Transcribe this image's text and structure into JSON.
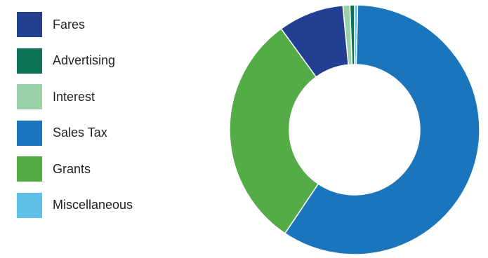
{
  "chart_data": {
    "type": "pie",
    "donut": true,
    "title": "",
    "legend_position": "left",
    "categories": [
      "Fares",
      "Advertising",
      "Interest",
      "Sales Tax",
      "Grants",
      "Miscellaneous"
    ],
    "values": [
      8.5,
      0.6,
      0.9,
      59.0,
      30.6,
      0.4
    ],
    "colors": [
      "#233f92",
      "#0c7357",
      "#9bd1a8",
      "#1b75bc",
      "#54ac47",
      "#5ec0e8"
    ],
    "drawing_order": [
      "Miscellaneous",
      "Sales Tax",
      "Grants",
      "Fares",
      "Interest",
      "Advertising"
    ],
    "start_angle_deg": 0,
    "direction": "clockwise"
  }
}
